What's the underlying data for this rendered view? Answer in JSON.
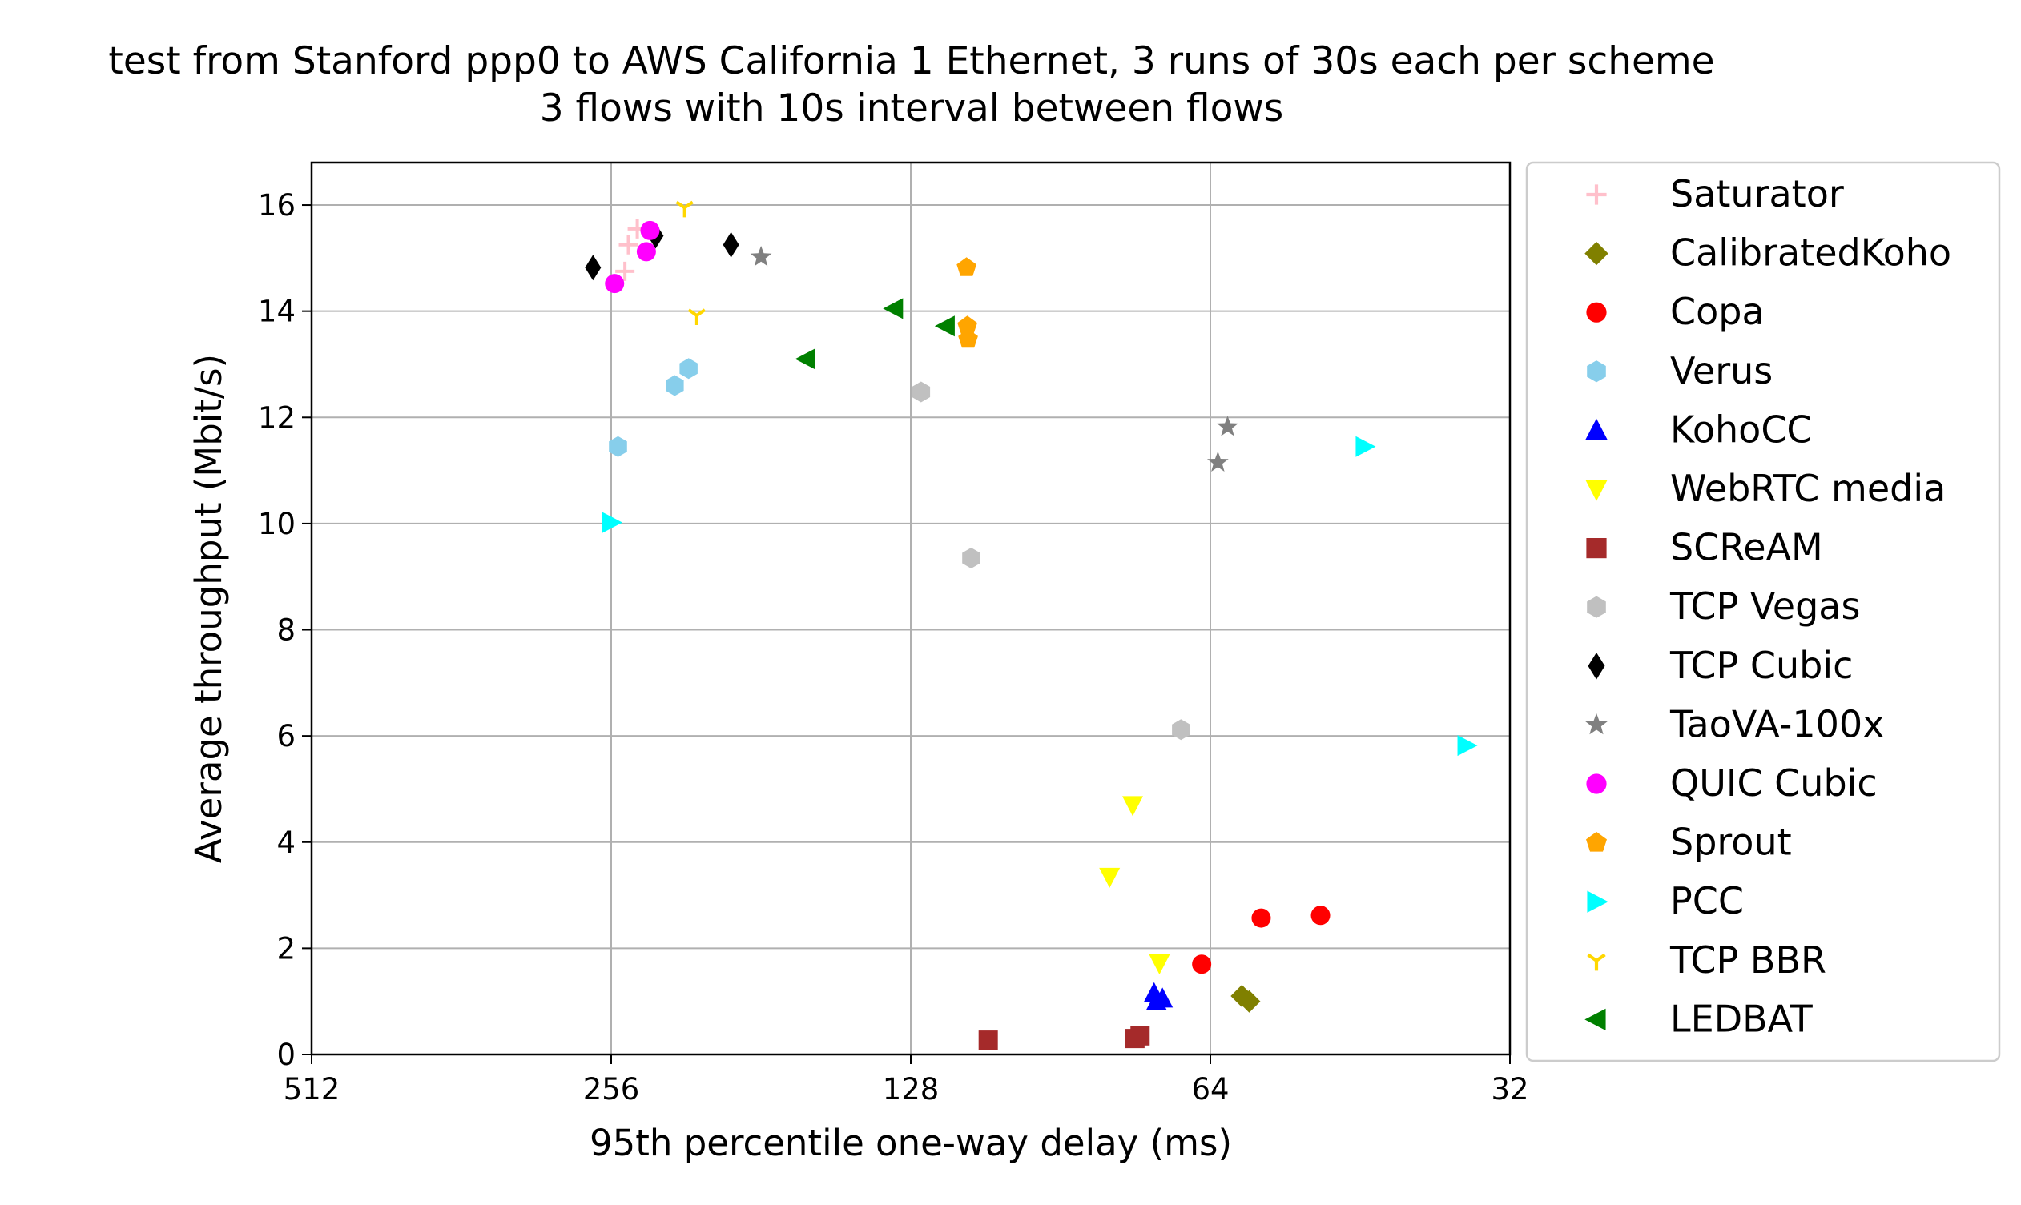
{
  "chart_data": {
    "type": "scatter",
    "title": "test from Stanford ppp0 to AWS California 1 Ethernet, 3 runs of 30s each per scheme",
    "subtitle": "3 flows with 10s interval between flows",
    "xlabel": "95th percentile one-way delay (ms)",
    "ylabel": "Average throughput (Mbit/s)",
    "x_scale": "log2",
    "x_inverted": true,
    "xlim": [
      512,
      32
    ],
    "ylim": [
      0,
      16.8
    ],
    "xticks": [
      512,
      256,
      128,
      64,
      32
    ],
    "xtick_labels": [
      "512",
      "256",
      "128",
      "64",
      "32"
    ],
    "yticks": [
      0,
      2,
      4,
      6,
      8,
      10,
      12,
      14,
      16
    ],
    "ytick_labels": [
      "0",
      "2",
      "4",
      "6",
      "8",
      "10",
      "12",
      "14",
      "16"
    ],
    "grid": true,
    "legend_position": "outside-right",
    "series": [
      {
        "name": "Saturator",
        "marker": "plus",
        "color": "#ffc0cb",
        "points": [
          [
            248,
            14.75
          ],
          [
            246,
            15.25
          ],
          [
            241,
            15.55
          ]
        ]
      },
      {
        "name": "CalibratedKoho",
        "marker": "diamond",
        "color": "#808000",
        "points": [
          [
            59.5,
            1.1
          ],
          [
            58.5,
            1.0
          ]
        ]
      },
      {
        "name": "Copa",
        "marker": "circle",
        "color": "#ff0000",
        "points": [
          [
            65.3,
            1.7
          ],
          [
            56.9,
            2.57
          ],
          [
            49.6,
            2.62
          ]
        ]
      },
      {
        "name": "Verus",
        "marker": "hexagon",
        "color": "#87ceeb",
        "points": [
          [
            252,
            11.45
          ],
          [
            221,
            12.6
          ],
          [
            214,
            12.92
          ]
        ]
      },
      {
        "name": "KohoCC",
        "marker": "triangle-up",
        "color": "#0000ff",
        "points": [
          [
            72.9,
            1.15
          ],
          [
            72.5,
            1.0
          ],
          [
            71.5,
            1.05
          ]
        ]
      },
      {
        "name": "WebRTC media",
        "marker": "triangle-down",
        "color": "#ffff00",
        "points": [
          [
            80.8,
            3.35
          ],
          [
            76.6,
            4.7
          ],
          [
            72.0,
            1.72
          ]
        ]
      },
      {
        "name": "SCReAM",
        "marker": "square",
        "color": "#a52a2a",
        "points": [
          [
            107.0,
            0.27
          ],
          [
            76.2,
            0.3
          ],
          [
            75.3,
            0.35
          ]
        ]
      },
      {
        "name": "TCP Vegas",
        "marker": "hexagon",
        "color": "#c0c0c0",
        "points": [
          [
            125.0,
            12.48
          ],
          [
            111.3,
            9.35
          ],
          [
            68.5,
            6.12
          ]
        ]
      },
      {
        "name": "TCP Cubic",
        "marker": "thin-diamond",
        "color": "#000000",
        "points": [
          [
            267,
            14.82
          ],
          [
            231,
            15.42
          ],
          [
            194,
            15.25
          ]
        ]
      },
      {
        "name": "TaoVA-100x",
        "marker": "star",
        "color": "#808080",
        "points": [
          [
            181,
            15.02
          ],
          [
            62.9,
            11.15
          ],
          [
            61.5,
            11.82
          ]
        ]
      },
      {
        "name": "QUIC Cubic",
        "marker": "circle",
        "color": "#ff00ff",
        "points": [
          [
            254,
            14.52
          ],
          [
            236,
            15.12
          ],
          [
            234,
            15.52
          ]
        ]
      },
      {
        "name": "Sprout",
        "marker": "pentagon",
        "color": "#ffa500",
        "points": [
          [
            112.5,
            14.82
          ],
          [
            112.3,
            13.72
          ],
          [
            112.1,
            13.47
          ]
        ]
      },
      {
        "name": "PCC",
        "marker": "triangle-right",
        "color": "#00ffff",
        "points": [
          [
            256,
            10.02
          ],
          [
            44.8,
            11.45
          ],
          [
            35.4,
            5.82
          ]
        ]
      },
      {
        "name": "TCP BBR",
        "marker": "tri-down",
        "color": "#ffd700",
        "points": [
          [
            216,
            15.95
          ],
          [
            210,
            13.92
          ]
        ]
      },
      {
        "name": "LEDBAT",
        "marker": "triangle-left",
        "color": "#008000",
        "points": [
          [
            163,
            13.1
          ],
          [
            133,
            14.05
          ],
          [
            118,
            13.72
          ]
        ]
      }
    ]
  }
}
